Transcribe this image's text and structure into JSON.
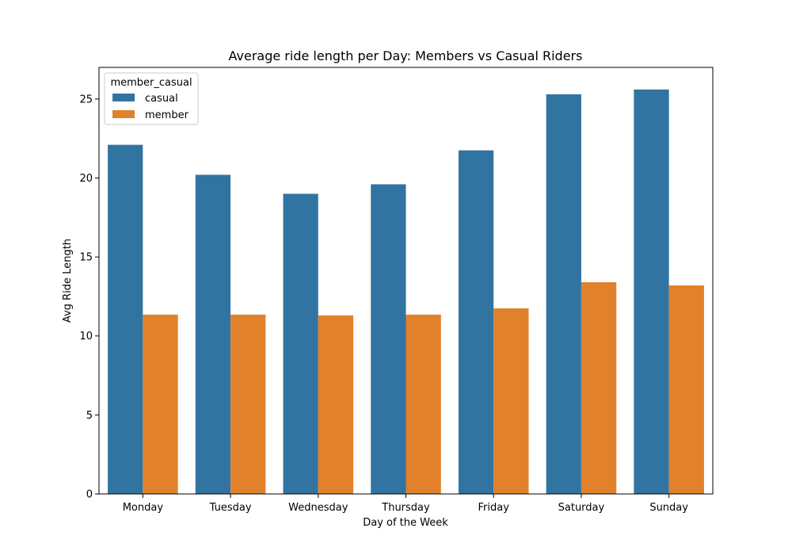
{
  "chart_data": {
    "type": "bar",
    "title": "Average ride length per Day: Members vs Casual Riders",
    "xlabel": "Day of the Week",
    "ylabel": "Avg Ride Length",
    "categories": [
      "Monday",
      "Tuesday",
      "Wednesday",
      "Thursday",
      "Friday",
      "Saturday",
      "Sunday"
    ],
    "series": [
      {
        "name": "casual",
        "color": "#3274a1",
        "values": [
          22.1,
          20.2,
          19.0,
          19.6,
          21.75,
          25.3,
          25.6
        ]
      },
      {
        "name": "member",
        "color": "#e1812c",
        "values": [
          11.35,
          11.35,
          11.3,
          11.35,
          11.75,
          13.4,
          13.2
        ]
      }
    ],
    "ylim": [
      0,
      27
    ],
    "yticks": [
      0,
      5,
      10,
      15,
      20,
      25
    ],
    "legend": {
      "title": "member_casual",
      "position": "top-left"
    },
    "grid": false
  }
}
